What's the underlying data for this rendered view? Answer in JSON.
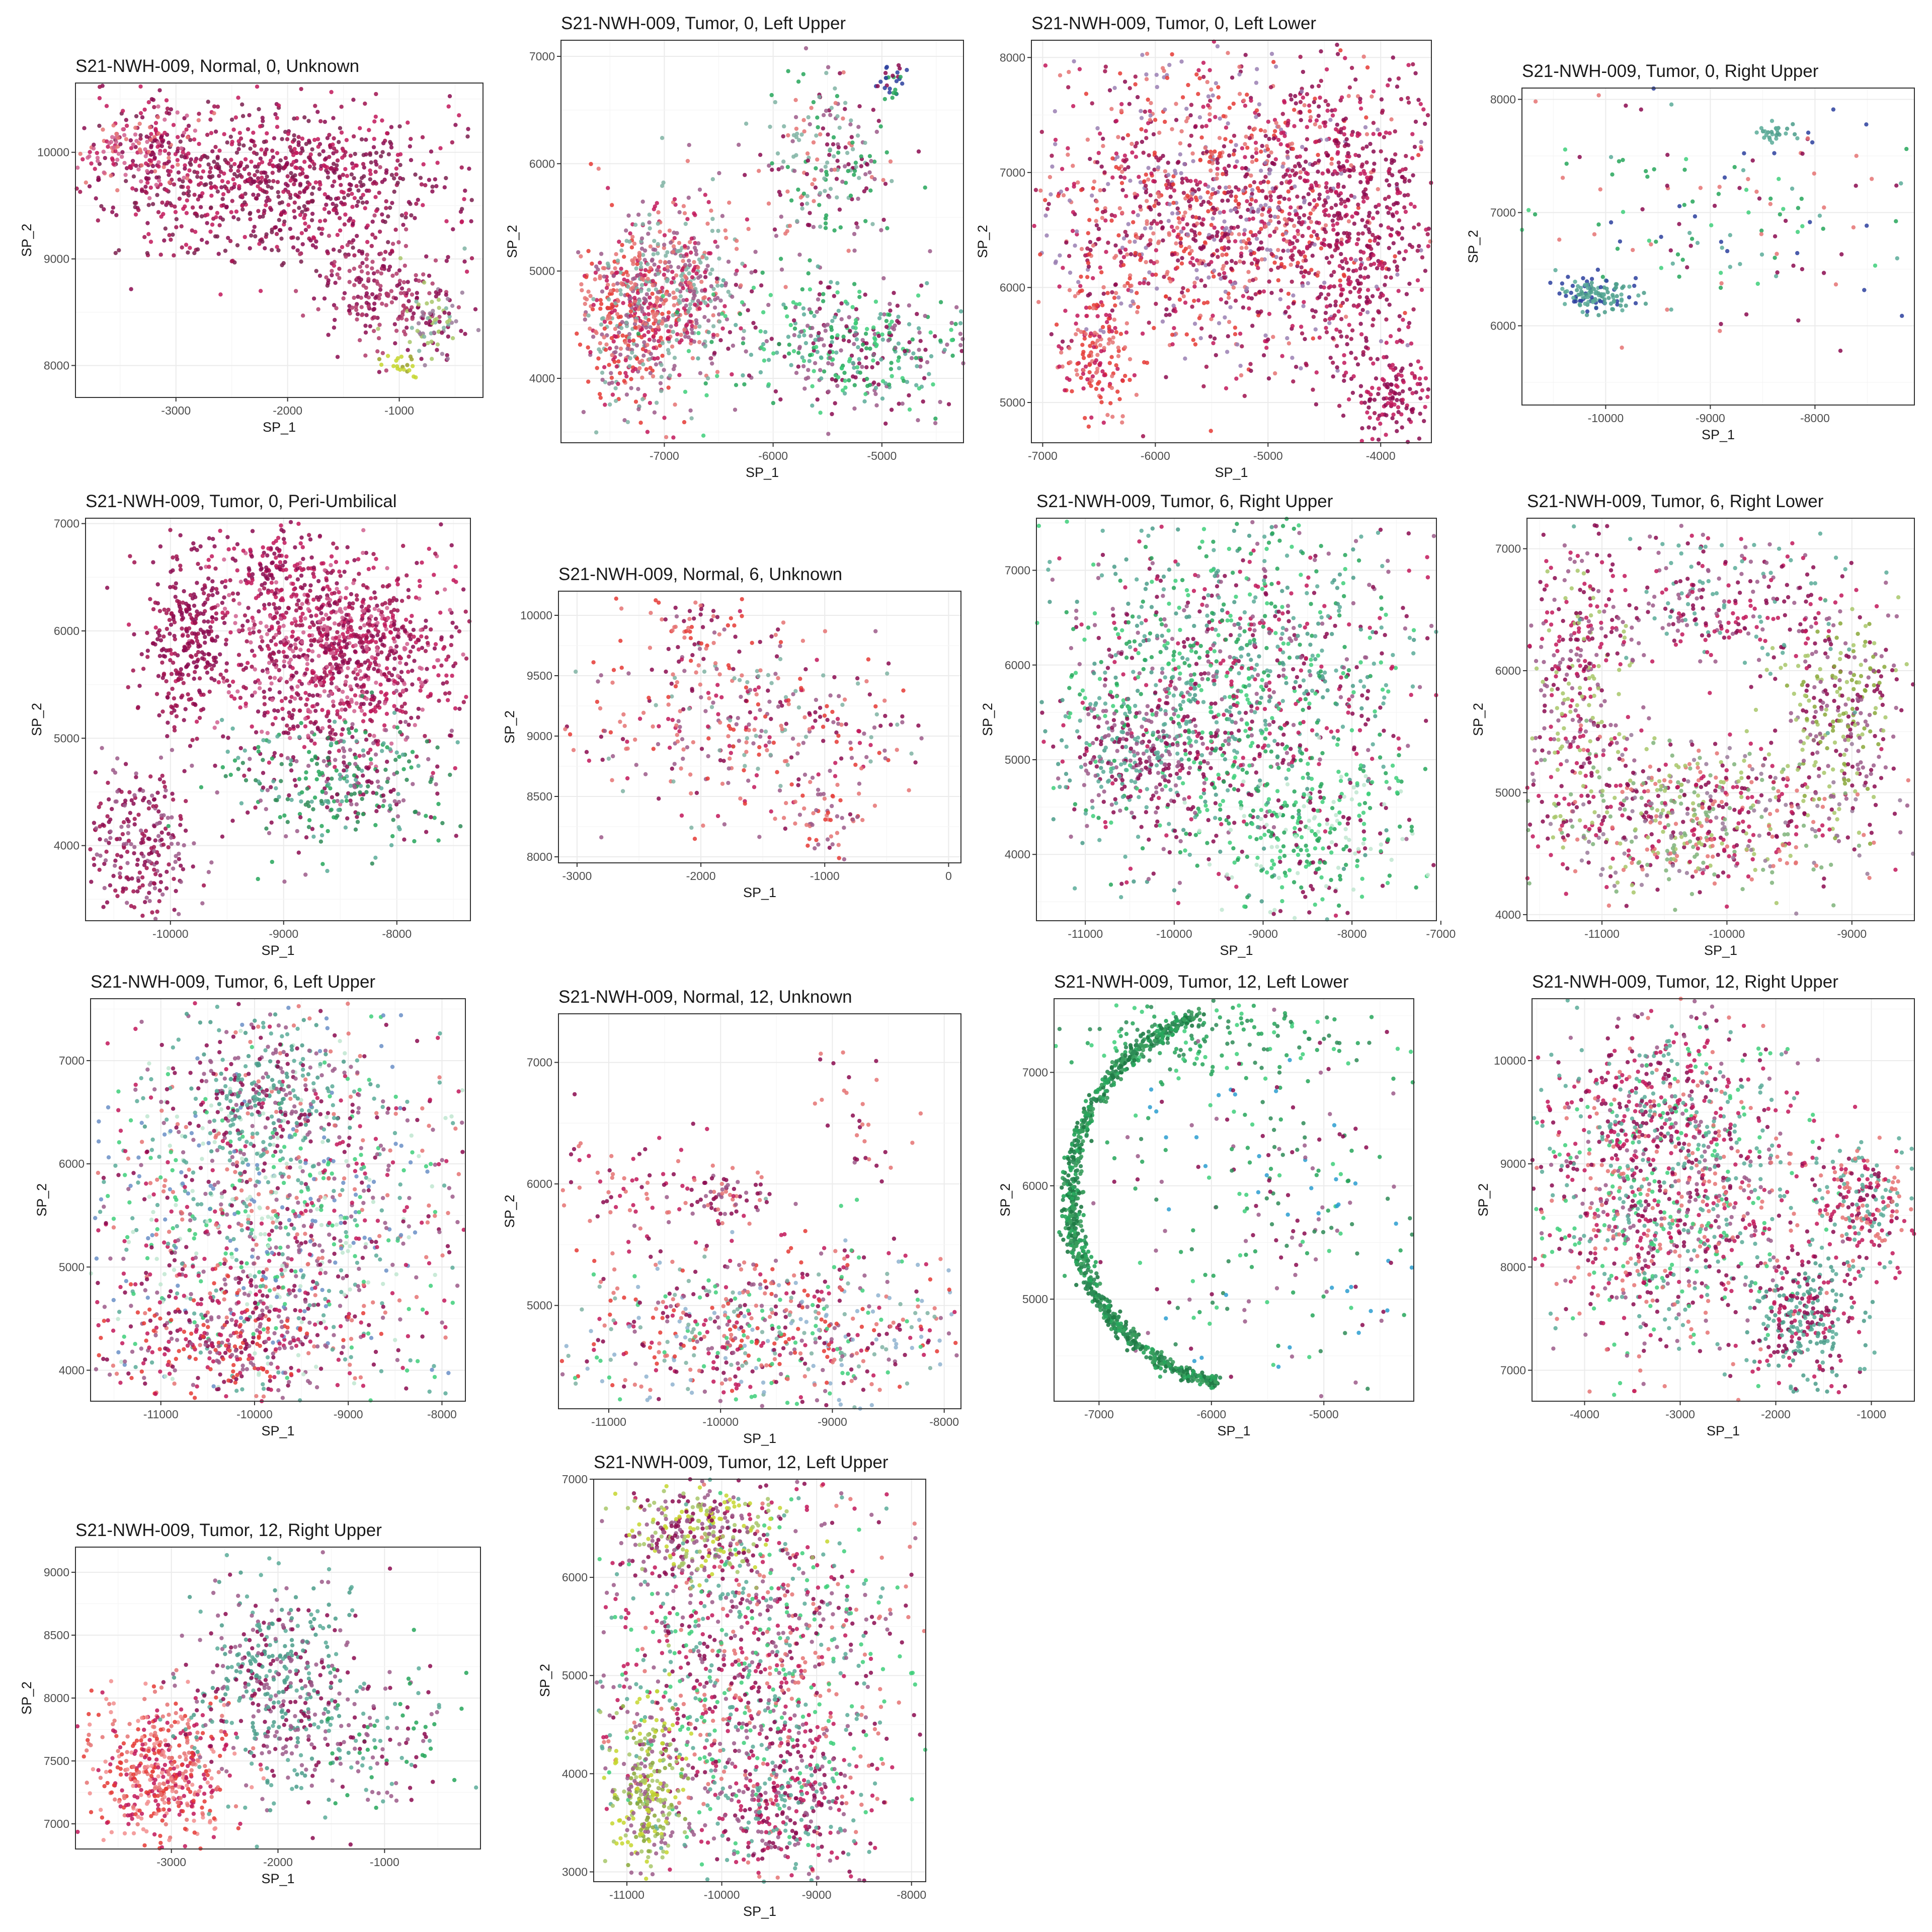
{
  "figure": {
    "sample": "S21-NWH-009",
    "xlabel": "SP_1",
    "ylabel": "SP_2",
    "grid": true,
    "legend": "none"
  },
  "chart_data": [
    {
      "type": "scatter",
      "title": "S21-NWH-009, Normal, 0, Unknown",
      "xlabel": "SP_1",
      "ylabel": "SP_2",
      "xlim": [
        -3900,
        -250
      ],
      "ylim": [
        7700,
        10650
      ],
      "xticks": [
        -3000,
        -2000,
        -1000
      ],
      "yticks": [
        8000,
        9000,
        10000
      ],
      "clusters": [
        {
          "x": -2100,
          "y": 9700,
          "sx": 800,
          "sy": 380,
          "n": 900,
          "colors": [
            "#8b0a50",
            "#a0124f",
            "#c2185b",
            "#7a1f4d"
          ]
        },
        {
          "x": -3300,
          "y": 10000,
          "sx": 280,
          "sy": 180,
          "n": 180,
          "colors": [
            "#c2185b",
            "#d0608f",
            "#e57373",
            "#8b0a50"
          ]
        },
        {
          "x": -1200,
          "y": 8700,
          "sx": 300,
          "sy": 260,
          "n": 200,
          "colors": [
            "#8b0a50",
            "#b03a6a"
          ]
        },
        {
          "x": -700,
          "y": 8400,
          "sx": 150,
          "sy": 200,
          "n": 90,
          "colors": [
            "#7fb3a3",
            "#a8c76a",
            "#9a7a9a",
            "#8b0a50"
          ]
        },
        {
          "x": -1000,
          "y": 8000,
          "sx": 70,
          "sy": 60,
          "n": 20,
          "colors": [
            "#c5d62f",
            "#9aa12a"
          ]
        }
      ]
    },
    {
      "type": "scatter",
      "title": "S21-NWH-009, Tumor, 0, Left Upper",
      "xlabel": "SP_1",
      "ylabel": "SP_2",
      "xlim": [
        -7950,
        -4250
      ],
      "ylim": [
        3400,
        7150
      ],
      "xticks": [
        -7000,
        -6000,
        -5000
      ],
      "yticks": [
        4000,
        5000,
        6000,
        7000
      ],
      "clusters": [
        {
          "x": -7300,
          "y": 4600,
          "sx": 230,
          "sy": 420,
          "n": 500,
          "colors": [
            "#e57373",
            "#c2185b",
            "#9c5a8a",
            "#7fb3a3",
            "#e53935"
          ]
        },
        {
          "x": -6800,
          "y": 4900,
          "sx": 230,
          "sy": 400,
          "n": 350,
          "colors": [
            "#e57373",
            "#9c5a8a",
            "#c2185b",
            "#7fb3a3"
          ]
        },
        {
          "x": -5500,
          "y": 6000,
          "sx": 320,
          "sy": 400,
          "n": 220,
          "colors": [
            "#8b0a50",
            "#26a65b",
            "#7fb3a3",
            "#e57373",
            "#9c5a8a"
          ]
        },
        {
          "x": -5300,
          "y": 4300,
          "sx": 600,
          "sy": 320,
          "n": 450,
          "colors": [
            "#5bab99",
            "#26a65b",
            "#8b0a50",
            "#9c5a8a",
            "#3ecf7a"
          ]
        },
        {
          "x": -4950,
          "y": 6750,
          "sx": 80,
          "sy": 100,
          "n": 30,
          "colors": [
            "#8b0a50",
            "#26a65b",
            "#2b3f9e"
          ]
        }
      ]
    },
    {
      "type": "scatter",
      "title": "S21-NWH-009, Tumor, 0, Left Lower",
      "xlabel": "SP_1",
      "ylabel": "SP_2",
      "xlim": [
        -7100,
        -3550
      ],
      "ylim": [
        4650,
        8150
      ],
      "xticks": [
        -7000,
        -6000,
        -5000,
        -4000
      ],
      "yticks": [
        5000,
        6000,
        7000,
        8000
      ],
      "clusters": [
        {
          "x": -5500,
          "y": 6700,
          "sx": 800,
          "sy": 700,
          "n": 1400,
          "colors": [
            "#c2185b",
            "#8b0a50",
            "#e57373",
            "#a0124f",
            "#e53935",
            "#9a7fb3"
          ]
        },
        {
          "x": -4200,
          "y": 6500,
          "sx": 350,
          "sy": 700,
          "n": 500,
          "colors": [
            "#8b0a50",
            "#c2185b",
            "#a0124f"
          ]
        },
        {
          "x": -6550,
          "y": 5400,
          "sx": 160,
          "sy": 300,
          "n": 150,
          "colors": [
            "#c2185b",
            "#e57373",
            "#e53935"
          ]
        },
        {
          "x": -3900,
          "y": 5050,
          "sx": 180,
          "sy": 160,
          "n": 120,
          "colors": [
            "#8b0a50",
            "#c2185b"
          ]
        }
      ]
    },
    {
      "type": "scatter",
      "title": "S21-NWH-009, Tumor, 0, Right Upper",
      "xlabel": "SP_1",
      "ylabel": "SP_2",
      "xlim": [
        -10800,
        -7050
      ],
      "ylim": [
        5300,
        8100
      ],
      "xticks": [
        -10000,
        -9000,
        -8000
      ],
      "yticks": [
        6000,
        7000,
        8000
      ],
      "clusters": [
        {
          "x": -10050,
          "y": 6280,
          "sx": 170,
          "sy": 70,
          "n": 120,
          "colors": [
            "#5bab99",
            "#4a9c8a",
            "#2b3f9e"
          ]
        },
        {
          "x": -9000,
          "y": 7000,
          "sx": 900,
          "sy": 550,
          "n": 150,
          "colors": [
            "#26a65b",
            "#5bab99",
            "#8b0a50",
            "#e57373",
            "#3ecf7a",
            "#2b3f9e"
          ]
        },
        {
          "x": -8400,
          "y": 7700,
          "sx": 80,
          "sy": 60,
          "n": 25,
          "colors": [
            "#5bab99",
            "#4a9c8a"
          ]
        }
      ]
    },
    {
      "type": "scatter",
      "title": "S21-NWH-009, Tumor, 0, Peri-Umbilical",
      "xlabel": "SP_1",
      "ylabel": "SP_2",
      "xlim": [
        -10750,
        -7350
      ],
      "ylim": [
        3300,
        7050
      ],
      "xticks": [
        -10000,
        -9000,
        -8000
      ],
      "yticks": [
        4000,
        5000,
        6000,
        7000
      ],
      "clusters": [
        {
          "x": -8500,
          "y": 5800,
          "sx": 550,
          "sy": 450,
          "n": 1100,
          "colors": [
            "#8b0a50",
            "#a0124f",
            "#c2185b",
            "#d0608f"
          ]
        },
        {
          "x": -9850,
          "y": 5900,
          "sx": 180,
          "sy": 400,
          "n": 280,
          "colors": [
            "#8b0a50",
            "#a0124f"
          ]
        },
        {
          "x": -10300,
          "y": 4000,
          "sx": 250,
          "sy": 400,
          "n": 250,
          "colors": [
            "#8b0a50",
            "#9c5a8a",
            "#a0124f"
          ]
        },
        {
          "x": -8500,
          "y": 4600,
          "sx": 450,
          "sy": 350,
          "n": 350,
          "colors": [
            "#26a65b",
            "#2e8b57",
            "#5bab99",
            "#9c5a8a",
            "#8b0a50"
          ]
        },
        {
          "x": -9100,
          "y": 6600,
          "sx": 250,
          "sy": 180,
          "n": 120,
          "colors": [
            "#8b0a50",
            "#c2185b"
          ]
        }
      ]
    },
    {
      "type": "scatter",
      "title": "S21-NWH-009, Normal, 6, Unknown",
      "xlabel": "SP_1",
      "ylabel": "SP_2",
      "xlim": [
        -3150,
        100
      ],
      "ylim": [
        7950,
        10200
      ],
      "xticks": [
        -3000,
        -2000,
        -1000,
        0
      ],
      "yticks": [
        8000,
        8500,
        9000,
        9500,
        10000
      ],
      "clusters": [
        {
          "x": -1700,
          "y": 9100,
          "sx": 700,
          "sy": 350,
          "n": 350,
          "colors": [
            "#e53935",
            "#e57373",
            "#9c5a8a",
            "#c2185b",
            "#8b0a50",
            "#7fb3a3"
          ]
        },
        {
          "x": -2000,
          "y": 9850,
          "sx": 300,
          "sy": 200,
          "n": 70,
          "colors": [
            "#e53935",
            "#e57373",
            "#8b0a50"
          ]
        },
        {
          "x": -1000,
          "y": 8350,
          "sx": 180,
          "sy": 180,
          "n": 60,
          "colors": [
            "#e57373",
            "#9c5a8a",
            "#e53935"
          ]
        }
      ]
    },
    {
      "type": "scatter",
      "title": "S21-NWH-009, Tumor, 6, Right Upper",
      "xlabel": "SP_1",
      "ylabel": "SP_2",
      "xlim": [
        -11550,
        -7050
      ],
      "ylim": [
        3300,
        7550
      ],
      "xticks": [
        -11000,
        -10000,
        -9000,
        -8000,
        -7000
      ],
      "yticks": [
        4000,
        5000,
        6000,
        7000
      ],
      "clusters": [
        {
          "x": -9400,
          "y": 5800,
          "sx": 1100,
          "sy": 900,
          "n": 1300,
          "colors": [
            "#5bab99",
            "#4a9c8a",
            "#8b0a50",
            "#9c5a8a",
            "#3ecf7a",
            "#26a65b",
            "#c2185b"
          ]
        },
        {
          "x": -8400,
          "y": 4200,
          "sx": 600,
          "sy": 450,
          "n": 300,
          "colors": [
            "#3ecf7a",
            "#8b0a50",
            "#26a65b",
            "#bfe6d0"
          ]
        },
        {
          "x": -10400,
          "y": 5000,
          "sx": 400,
          "sy": 400,
          "n": 250,
          "colors": [
            "#8b0a50",
            "#9c5a8a",
            "#5bab99"
          ]
        }
      ]
    },
    {
      "type": "scatter",
      "title": "S21-NWH-009, Tumor, 6, Right Lower",
      "xlabel": "SP_1",
      "ylabel": "SP_2",
      "xlim": [
        -11600,
        -8500
      ],
      "ylim": [
        3950,
        7250
      ],
      "xticks": [
        -11000,
        -10000,
        -9000
      ],
      "yticks": [
        4000,
        5000,
        6000,
        7000
      ],
      "clusters": [
        {
          "x": -10300,
          "y": 4800,
          "sx": 700,
          "sy": 300,
          "n": 700,
          "colors": [
            "#8b0a50",
            "#c2185b",
            "#9a7a9a",
            "#a8c76a",
            "#7fb37a",
            "#e57373"
          ]
        },
        {
          "x": -11200,
          "y": 5900,
          "sx": 200,
          "sy": 550,
          "n": 300,
          "colors": [
            "#8b0a50",
            "#9c5a8a",
            "#a8c76a",
            "#c2185b"
          ]
        },
        {
          "x": -9100,
          "y": 5700,
          "sx": 250,
          "sy": 450,
          "n": 300,
          "colors": [
            "#a8c76a",
            "#8aa83a",
            "#8b0a50",
            "#9c5a8a"
          ]
        },
        {
          "x": -10100,
          "y": 6600,
          "sx": 550,
          "sy": 300,
          "n": 300,
          "colors": [
            "#8b0a50",
            "#5bab99",
            "#c2185b",
            "#9c5a8a"
          ]
        }
      ]
    },
    {
      "type": "scatter",
      "title": "S21-NWH-009, Tumor, 6, Left Upper",
      "xlabel": "SP_1",
      "ylabel": "SP_2",
      "xlim": [
        -11750,
        -7750
      ],
      "ylim": [
        3700,
        7600
      ],
      "xticks": [
        -11000,
        -10000,
        -9000,
        -8000
      ],
      "yticks": [
        4000,
        5000,
        6000,
        7000
      ],
      "clusters": [
        {
          "x": -9800,
          "y": 5500,
          "sx": 1100,
          "sy": 900,
          "n": 1300,
          "colors": [
            "#8b0a50",
            "#c2185b",
            "#5bab99",
            "#9c5a8a",
            "#3ecf7a",
            "#e57373",
            "#bfe6d0",
            "#6a8fc7"
          ]
        },
        {
          "x": -10300,
          "y": 4300,
          "sx": 700,
          "sy": 300,
          "n": 350,
          "colors": [
            "#8b0a50",
            "#9c5a8a",
            "#c2185b",
            "#e53935"
          ]
        },
        {
          "x": -9900,
          "y": 6700,
          "sx": 500,
          "sy": 350,
          "n": 300,
          "colors": [
            "#5bab99",
            "#4a9c8a",
            "#8b0a50",
            "#9c5a8a"
          ]
        }
      ]
    },
    {
      "type": "scatter",
      "title": "S21-NWH-009, Normal, 12, Unknown",
      "xlabel": "SP_1",
      "ylabel": "SP_2",
      "xlim": [
        -11450,
        -7850
      ],
      "ylim": [
        4150,
        7400
      ],
      "xticks": [
        -11000,
        -10000,
        -9000,
        -8000
      ],
      "yticks": [
        5000,
        6000,
        7000
      ],
      "clusters": [
        {
          "x": -9600,
          "y": 4800,
          "sx": 900,
          "sy": 350,
          "n": 700,
          "colors": [
            "#e57373",
            "#9c5a8a",
            "#8b0a50",
            "#e53935",
            "#7fb3a3",
            "#3ecf7a",
            "#c2185b",
            "#8fb3d0"
          ]
        },
        {
          "x": -9900,
          "y": 5900,
          "sx": 200,
          "sy": 100,
          "n": 60,
          "colors": [
            "#9c5a8a",
            "#8b0a50",
            "#e57373"
          ]
        },
        {
          "x": -10700,
          "y": 6000,
          "sx": 400,
          "sy": 300,
          "n": 80,
          "colors": [
            "#8b0a50",
            "#e57373",
            "#c2185b"
          ]
        },
        {
          "x": -8700,
          "y": 6500,
          "sx": 300,
          "sy": 350,
          "n": 30,
          "colors": [
            "#e57373",
            "#8b0a50"
          ]
        }
      ]
    },
    {
      "type": "scatter",
      "title": "S21-NWH-009, Tumor, 12, Left Lower",
      "xlabel": "SP_1",
      "ylabel": "SP_2",
      "xlim": [
        -7400,
        -4200
      ],
      "ylim": [
        4100,
        7650
      ],
      "xticks": [
        -7000,
        -6000,
        -5000
      ],
      "yticks": [
        5000,
        6000,
        7000
      ],
      "clusters": [
        {
          "x": -6000,
          "y": 7300,
          "sx": 600,
          "sy": 150,
          "n": 160,
          "colors": [
            "#26a65b",
            "#2e8b57",
            "#3ecf7a"
          ]
        },
        {
          "x": -5400,
          "y": 5800,
          "sx": 700,
          "sy": 800,
          "n": 260,
          "colors": [
            "#26a65b",
            "#2e8b57",
            "#9c5a8a",
            "#8b0a50",
            "#3ecf7a",
            "#2b9ed0"
          ]
        }
      ],
      "arc": {
        "cx": -5700,
        "cy": 5900,
        "r": 1550,
        "ry": 1650,
        "t0": 1.85,
        "t1": 4.55,
        "w": 45,
        "n": 900,
        "colors": [
          "#2e8b57",
          "#26a65b",
          "#3a9d5d",
          "#1f7a45"
        ]
      }
    },
    {
      "type": "scatter",
      "title": "S21-NWH-009, Tumor, 12, Right Upper",
      "xlabel": "SP_1",
      "ylabel": "SP_2",
      "xlim": [
        -4550,
        -550
      ],
      "ylim": [
        6700,
        10600
      ],
      "xticks": [
        -4000,
        -3000,
        -2000,
        -1000
      ],
      "yticks": [
        7000,
        8000,
        9000,
        10000
      ],
      "clusters": [
        {
          "x": -3100,
          "y": 8700,
          "sx": 700,
          "sy": 800,
          "n": 1100,
          "colors": [
            "#8b0a50",
            "#5bab99",
            "#c2185b",
            "#9c5a8a",
            "#3ecf7a",
            "#e57373"
          ]
        },
        {
          "x": -1700,
          "y": 7500,
          "sx": 300,
          "sy": 350,
          "n": 300,
          "colors": [
            "#5bab99",
            "#4a9c8a",
            "#8b0a50",
            "#c2185b"
          ]
        },
        {
          "x": -1100,
          "y": 8600,
          "sx": 300,
          "sy": 300,
          "n": 250,
          "colors": [
            "#8b0a50",
            "#c2185b",
            "#e57373",
            "#5bab99"
          ]
        },
        {
          "x": -3300,
          "y": 9600,
          "sx": 500,
          "sy": 400,
          "n": 200,
          "colors": [
            "#5bab99",
            "#8b0a50",
            "#c2185b"
          ]
        }
      ]
    },
    {
      "type": "scatter",
      "title": "S21-NWH-009, Tumor, 12, Right Upper",
      "xlabel": "SP_1",
      "ylabel": "SP_2",
      "xlim": [
        -3900,
        -100
      ],
      "ylim": [
        6800,
        9200
      ],
      "xticks": [
        -3000,
        -2000,
        -1000
      ],
      "yticks": [
        7000,
        7500,
        8000,
        8500,
        9000
      ],
      "clusters": [
        {
          "x": -3100,
          "y": 7400,
          "sx": 350,
          "sy": 300,
          "n": 500,
          "colors": [
            "#e57373",
            "#e53935",
            "#f28e8e",
            "#c2185b"
          ]
        },
        {
          "x": -2000,
          "y": 8100,
          "sx": 400,
          "sy": 450,
          "n": 500,
          "colors": [
            "#5bab99",
            "#4a9c8a",
            "#8b0a50",
            "#9c5a8a"
          ]
        },
        {
          "x": -1000,
          "y": 7700,
          "sx": 350,
          "sy": 300,
          "n": 120,
          "colors": [
            "#26a65b",
            "#5bab99",
            "#8b0a50",
            "#9c5a8a"
          ]
        }
      ]
    },
    {
      "type": "scatter",
      "title": "S21-NWH-009, Tumor, 12, Left Upper",
      "xlabel": "SP_1",
      "ylabel": "SP_2",
      "xlim": [
        -11350,
        -7850
      ],
      "ylim": [
        2900,
        7000
      ],
      "xticks": [
        -11000,
        -10000,
        -9000,
        -8000
      ],
      "yticks": [
        3000,
        4000,
        5000,
        6000,
        7000
      ],
      "clusters": [
        {
          "x": -9700,
          "y": 5000,
          "sx": 800,
          "sy": 1000,
          "n": 1200,
          "colors": [
            "#8b0a50",
            "#c2185b",
            "#5bab99",
            "#9c5a8a",
            "#3ecf7a",
            "#e57373"
          ]
        },
        {
          "x": -10800,
          "y": 3800,
          "sx": 200,
          "sy": 450,
          "n": 300,
          "colors": [
            "#a8c76a",
            "#c5d62f",
            "#8aa83a",
            "#9c5a8a"
          ]
        },
        {
          "x": -10200,
          "y": 6500,
          "sx": 450,
          "sy": 250,
          "n": 300,
          "colors": [
            "#a8c76a",
            "#c5d62f",
            "#8b0a50",
            "#9c5a8a"
          ]
        },
        {
          "x": -9300,
          "y": 3600,
          "sx": 400,
          "sy": 350,
          "n": 250,
          "colors": [
            "#5bab99",
            "#8b0a50",
            "#c2185b",
            "#9c5a8a"
          ]
        }
      ]
    }
  ]
}
